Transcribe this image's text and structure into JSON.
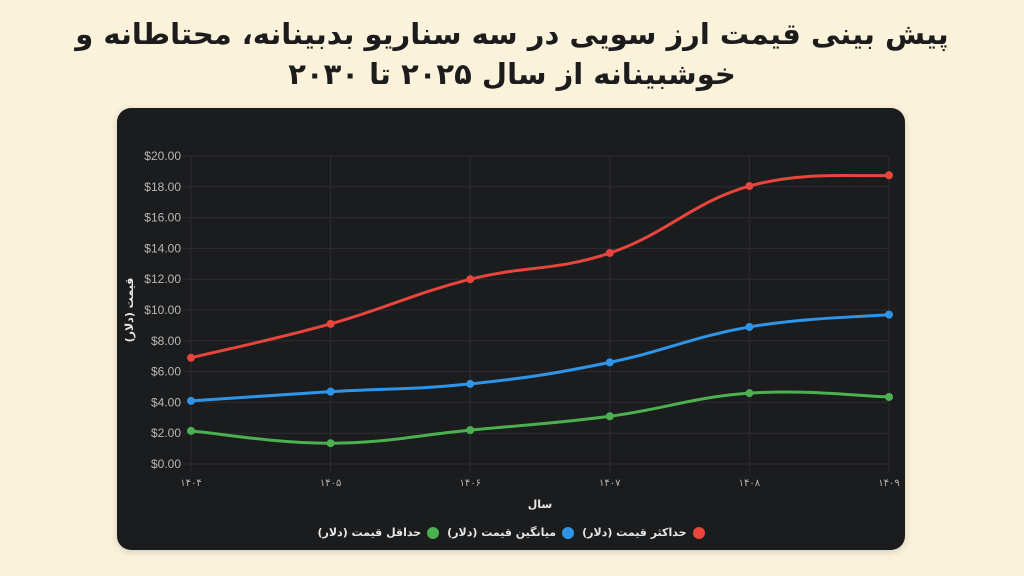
{
  "title": "پیش بینی قیمت ارز سویی در سه سناریو بدبینانه، محتاطانه و خوشبینانه از سال ۲۰۲۵ تا ۲۰۳۰",
  "chart_data": {
    "type": "line",
    "title": "پیش بینی قیمت ارز سویی در سه سناریو بدبینانه، محتاطانه و خوشبینانه از سال ۲۰۲۵ تا ۲۰۳۰",
    "xlabel": "سال",
    "ylabel": "قیمت (دلار)",
    "categories": [
      "۱۴۰۴",
      "۱۴۰۵",
      "۱۴۰۶",
      "۱۴۰۷",
      "۱۴۰۸",
      "۱۴۰۹"
    ],
    "ylim": [
      0,
      20
    ],
    "yticks": [
      "$0.00",
      "$2.00",
      "$4.00",
      "$6.00",
      "$8.00",
      "$10.00",
      "$12.00",
      "$14.00",
      "$16.00",
      "$18.00",
      "$20.00"
    ],
    "grid": true,
    "legend_position": "bottom",
    "series": [
      {
        "name": "حداکثر قیمت (دلار)",
        "color": "#e8453c",
        "values": [
          6.9,
          9.1,
          12.0,
          13.7,
          18.05,
          18.75
        ]
      },
      {
        "name": "میانگین قیمت (دلار)",
        "color": "#2f95e8",
        "values": [
          4.1,
          4.7,
          5.2,
          6.6,
          8.9,
          9.7
        ]
      },
      {
        "name": "حداقل قیمت (دلار)",
        "color": "#4caf50",
        "values": [
          2.15,
          1.35,
          2.2,
          3.1,
          4.6,
          4.35
        ]
      }
    ]
  }
}
